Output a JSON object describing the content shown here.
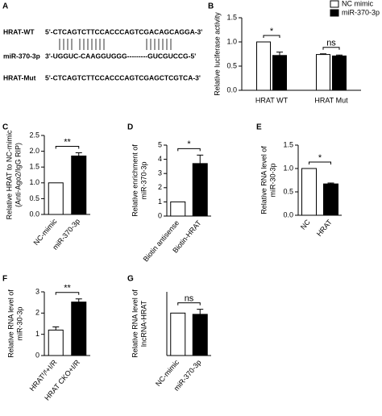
{
  "alignment": {
    "panel": "A",
    "rows": [
      {
        "label": "HRAT-WT",
        "sequence": "5'-CTCAGTCTTCCACCCAGTCGACAGCAGGA-3'"
      },
      {
        "label": "miR-370-3p",
        "sequence": "3'-UGGUC-CAAGGUGGG---------GUCGUCCG-5'"
      },
      {
        "label": "HRAT-Mut",
        "sequence": "5'-CTCAGTCTTCCACCCAGTCGAGCTCGTCA-3'"
      }
    ]
  },
  "chart_data": [
    {
      "type": "bar",
      "panel": "B",
      "ylabel": [
        "Relative luciferase activity"
      ],
      "categories": [
        "HRAT WT",
        "HRAT Mut"
      ],
      "series": [
        {
          "name": "NC mimic",
          "color": "#ffffff",
          "values": [
            1.0,
            0.74
          ],
          "errors": [
            0,
            0.015
          ]
        },
        {
          "name": "miR-370-3p",
          "color": "#000000",
          "values": [
            0.72,
            0.71
          ],
          "errors": [
            0.07,
            0.02
          ]
        }
      ],
      "significance": [
        "*",
        "ns"
      ],
      "ylim": [
        0,
        1.5
      ],
      "yticks": [
        {
          "value": 0,
          "label": "0.0"
        },
        0.5,
        {
          "value": 1,
          "label": "1.0"
        },
        1.5
      ]
    },
    {
      "type": "bar",
      "panel": "C",
      "ylabel": [
        "Relative HRAT to NC-mimic",
        "(Anti-Ago2/IgG RIP)"
      ],
      "categories": [
        "NC-mimic",
        "miR-370-3p"
      ],
      "values": [
        1.0,
        1.85
      ],
      "errors": [
        0,
        0.1
      ],
      "colors": [
        "#ffffff",
        "#000000"
      ],
      "significance": "**",
      "ylim": [
        0,
        2.5
      ],
      "yticks": [
        {
          "value": 0,
          "label": "0.0"
        },
        0.5,
        {
          "value": 1,
          "label": "1.0"
        },
        1.5,
        {
          "value": 2,
          "label": "2.0"
        },
        2.5
      ]
    },
    {
      "type": "bar",
      "panel": "D",
      "ylabel": [
        "Relative enrichment of",
        "miR-370-3p"
      ],
      "categories": [
        "Biotin antisense",
        "Biotin-HRAT"
      ],
      "values": [
        1.0,
        3.7
      ],
      "errors": [
        0,
        0.6
      ],
      "colors": [
        "#ffffff",
        "#000000"
      ],
      "significance": "*",
      "ylim": [
        0,
        5
      ],
      "yticks": [
        0,
        1,
        2,
        3,
        4,
        5
      ]
    },
    {
      "type": "bar",
      "panel": "E",
      "ylabel": [
        "Relative RNA level of",
        "miR-30-3p"
      ],
      "categories": [
        "NC",
        "HRAT"
      ],
      "values": [
        1.0,
        0.67
      ],
      "errors": [
        0,
        0.02
      ],
      "colors": [
        "#ffffff",
        "#000000"
      ],
      "significance": "*",
      "ylim": [
        0,
        1.5
      ],
      "yticks": [
        {
          "value": 0,
          "label": "0.0"
        },
        0.5,
        {
          "value": 1,
          "label": "1.0"
        },
        1.5
      ]
    },
    {
      "type": "bar",
      "panel": "F",
      "ylabel": [
        "Relative RNA level of",
        "miR-30-3p"
      ],
      "categories": [
        "HRATᶠ/ᶠ+I/R",
        "HRAT CKO+I/R"
      ],
      "values": [
        1.2,
        2.52
      ],
      "errors": [
        0.15,
        0.15
      ],
      "colors": [
        "#ffffff",
        "#000000"
      ],
      "significance": "**",
      "ylim": [
        0,
        3
      ],
      "yticks": [
        0,
        1,
        2,
        3
      ]
    },
    {
      "type": "bar",
      "panel": "G",
      "ylabel": [
        "Relative RNA level of",
        "lncRNA-HRAT"
      ],
      "categories": [
        "NC-mimic",
        "miR-370-3p"
      ],
      "values": [
        1.0,
        0.97
      ],
      "errors": [
        0,
        0.12
      ],
      "colors": [
        "#ffffff",
        "#000000"
      ],
      "significance": "ns",
      "ylim": [
        0,
        1.5
      ]
    }
  ]
}
